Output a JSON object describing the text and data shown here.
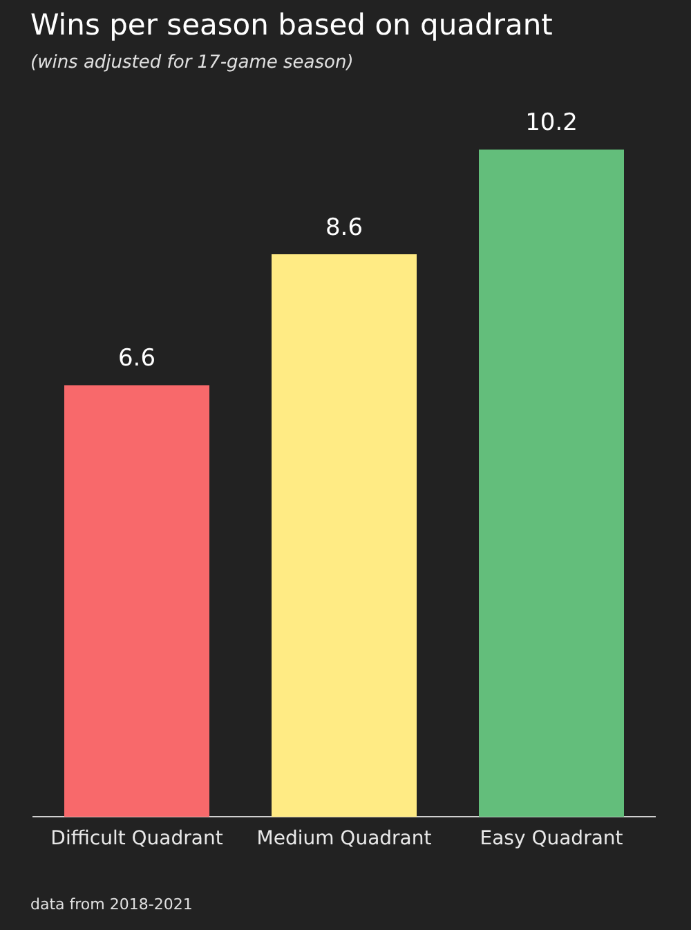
{
  "chart_data": {
    "type": "bar",
    "title": "Wins per season based on quadrant",
    "subtitle": "(wins adjusted for 17-game season)",
    "categories": [
      "Difficult Quadrant",
      "Medium Quadrant",
      "Easy Quadrant"
    ],
    "values": [
      6.6,
      8.6,
      10.2
    ],
    "colors": [
      "#f8696b",
      "#ffeb84",
      "#63be7b"
    ],
    "data_labels": true,
    "annotations": [
      "data from 2018-2021"
    ]
  }
}
